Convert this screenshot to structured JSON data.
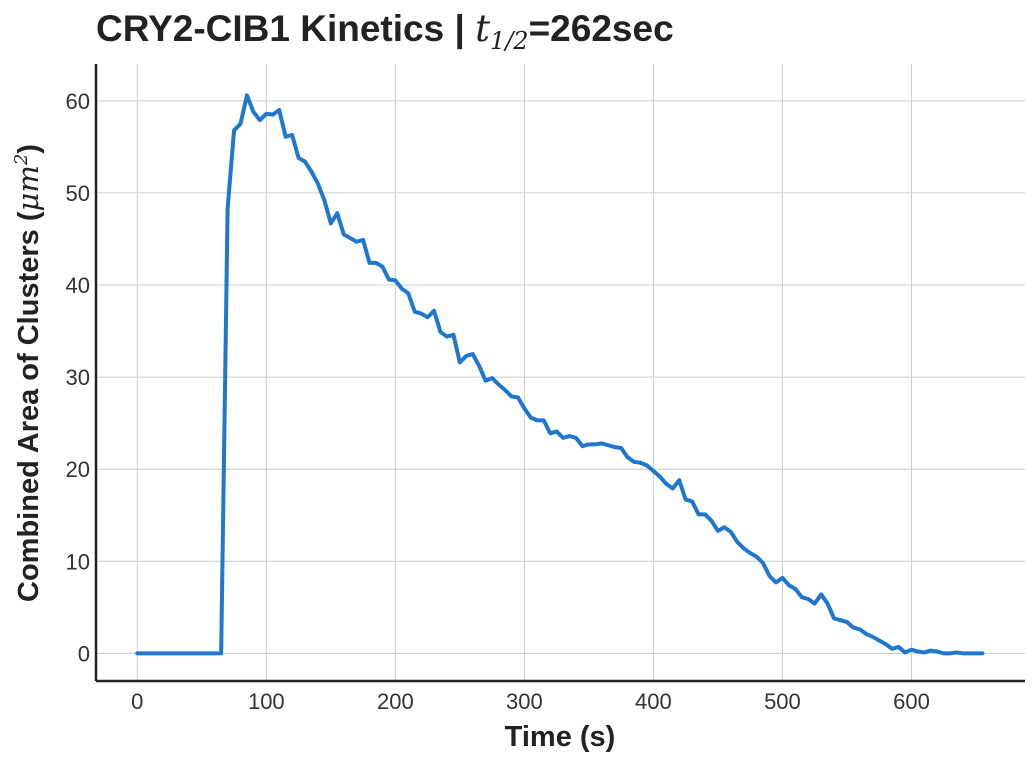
{
  "chart_data": {
    "type": "line",
    "title": "CRY2-CIB1 Kinetics | ",
    "title_math": "t",
    "title_math_sub": "1/2",
    "title_suffix": "=262sec",
    "xlabel": "Time (s)",
    "ylabel": "Combined Area of Clusters (",
    "ylabel_math": "μm",
    "ylabel_math_sup": "2",
    "ylabel_suffix": ")",
    "xlim": [
      -32,
      688
    ],
    "ylim": [
      -3,
      64
    ],
    "xticks": [
      0,
      100,
      200,
      300,
      400,
      500,
      600
    ],
    "yticks": [
      0,
      10,
      20,
      30,
      40,
      50,
      60
    ],
    "grid": true,
    "color": "#1f77d0",
    "series": [
      {
        "x": [
          0,
          5,
          10,
          15,
          20,
          25,
          30,
          35,
          40,
          45,
          50,
          55,
          60,
          65,
          70,
          75,
          80,
          85,
          90,
          95,
          100,
          105,
          110,
          115,
          120,
          125,
          130,
          135,
          140,
          145,
          150,
          155,
          160,
          165,
          170,
          175,
          180,
          185,
          190,
          195,
          200,
          205,
          210,
          215,
          220,
          225,
          230,
          235,
          240,
          245,
          250,
          255,
          260,
          265,
          270,
          275,
          280,
          285,
          290,
          295,
          300,
          305,
          310,
          315,
          320,
          325,
          330,
          335,
          340,
          345,
          350,
          355,
          360,
          365,
          370,
          375,
          380,
          385,
          390,
          395,
          400,
          405,
          410,
          415,
          420,
          425,
          430,
          435,
          440,
          445,
          450,
          455,
          460,
          465,
          470,
          475,
          480,
          485,
          490,
          495,
          500,
          505,
          510,
          515,
          520,
          525,
          530,
          535,
          540,
          545,
          550,
          555,
          560,
          565,
          570,
          575,
          580,
          585,
          590,
          595,
          600,
          605,
          610,
          615,
          620,
          625,
          630,
          635,
          640,
          645,
          650,
          655
        ],
        "y": [
          0,
          0,
          0,
          0,
          0,
          0,
          0,
          0,
          0,
          0,
          0,
          0,
          0,
          0,
          48.3,
          56.8,
          57.5,
          60.6,
          58.8,
          57.9,
          58.6,
          58.5,
          59.0,
          56.1,
          56.3,
          53.8,
          53.4,
          52.3,
          51.0,
          49.2,
          46.7,
          47.8,
          45.5,
          45.1,
          44.7,
          44.9,
          42.4,
          42.4,
          42.0,
          40.6,
          40.5,
          39.6,
          39.1,
          37.1,
          36.9,
          36.5,
          37.2,
          34.9,
          34.4,
          34.6,
          31.6,
          32.3,
          32.5,
          31.2,
          29.6,
          29.9,
          29.2,
          28.6,
          27.9,
          27.8,
          26.6,
          25.6,
          25.3,
          25.3,
          23.9,
          24.1,
          23.4,
          23.6,
          23.4,
          22.5,
          22.7,
          22.7,
          22.8,
          22.6,
          22.4,
          22.3,
          21.3,
          20.8,
          20.7,
          20.4,
          19.8,
          19.2,
          18.4,
          17.9,
          18.8,
          16.7,
          16.5,
          15.1,
          15.1,
          14.4,
          13.3,
          13.7,
          13.2,
          12.1,
          11.4,
          10.9,
          10.5,
          9.8,
          8.4,
          7.7,
          8.2,
          7.4,
          7.0,
          6.1,
          5.9,
          5.4,
          6.4,
          5.4,
          3.8,
          3.6,
          3.4,
          2.8,
          2.6,
          2.1,
          1.8,
          1.4,
          1.0,
          0.5,
          0.7,
          0.1,
          0.4,
          0.2,
          0.1,
          0.3,
          0.2,
          0.0,
          0.0,
          0.1,
          0.0,
          0.0,
          0.0,
          0.0
        ]
      }
    ]
  }
}
